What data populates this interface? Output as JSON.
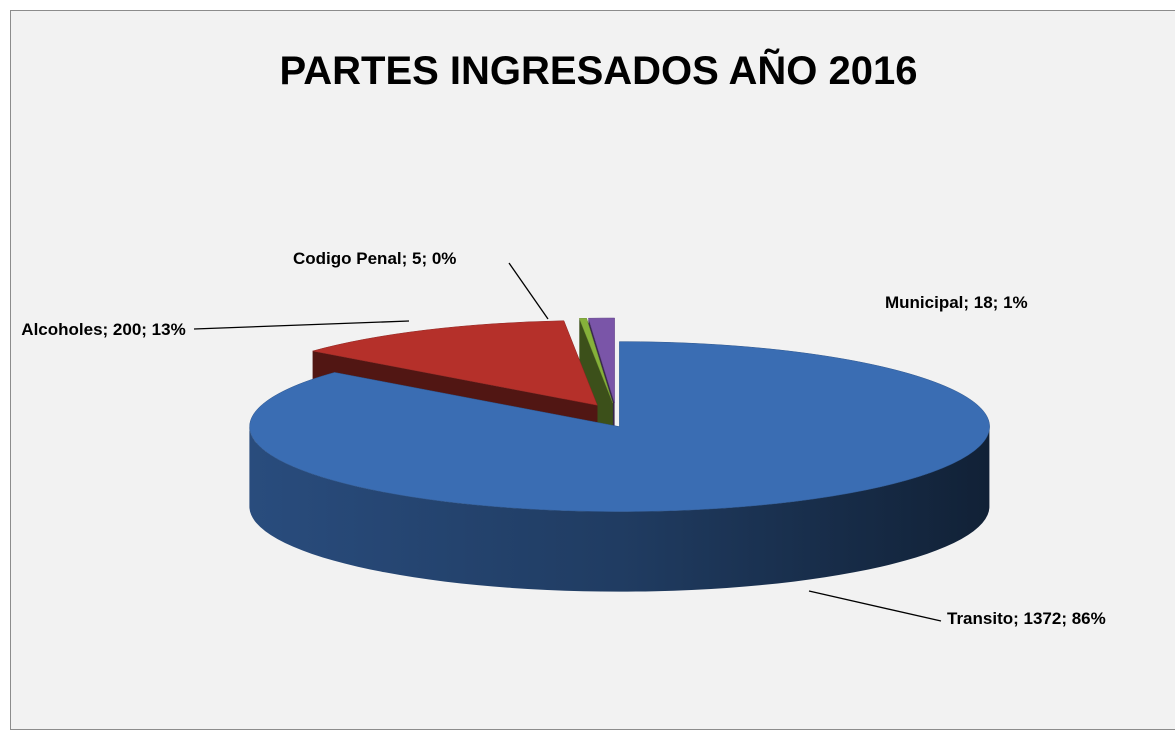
{
  "chart_data": {
    "type": "pie3d",
    "title": "PARTES INGRESADOS AÑO 2016",
    "categories": [
      "Transito",
      "Alcoholes",
      "Codigo Penal",
      "Municipal"
    ],
    "values": [
      1372,
      200,
      5,
      18
    ],
    "value_labels": [
      "Transito; 1372; 86%",
      "Alcoholes; 200; 13%",
      "Codigo Penal; 5; 0%",
      "Municipal; 18; 1%"
    ],
    "colors": [
      "#3a6db3",
      "#b5302a",
      "#86b13a",
      "#7a55a8"
    ]
  }
}
